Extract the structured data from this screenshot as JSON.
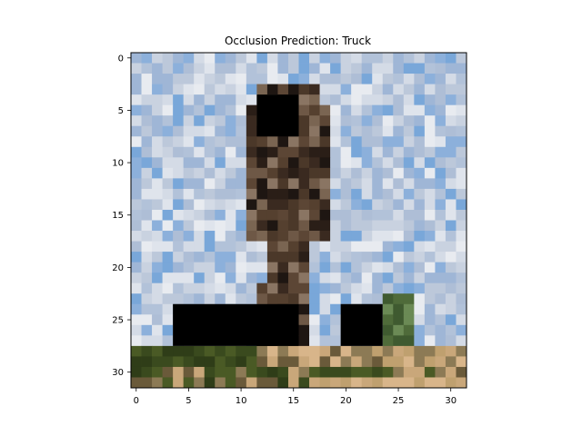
{
  "chart_data": {
    "type": "heatmap",
    "title": "Occlusion Prediction: Truck",
    "xlabel": "",
    "ylabel": "",
    "grid": false,
    "image_size": [
      32,
      32
    ],
    "xlim": [
      -0.5,
      31.5
    ],
    "ylim": [
      31.5,
      -0.5
    ],
    "xticks": [
      0,
      5,
      10,
      15,
      20,
      25,
      30
    ],
    "yticks": [
      0,
      5,
      10,
      15,
      20,
      25,
      30
    ],
    "xtick_labels": [
      "0",
      "5",
      "10",
      "15",
      "20",
      "25",
      "30"
    ],
    "ytick_labels": [
      "0",
      "5",
      "10",
      "15",
      "20",
      "25",
      "30"
    ],
    "occlusion_patches": [
      {
        "x0": 12,
        "x1": 15,
        "y0": 4,
        "y1": 7
      },
      {
        "x0": 4,
        "x1": 15,
        "y0": 24,
        "y1": 27
      },
      {
        "x0": 20,
        "x1": 23,
        "y0": 24,
        "y1": 27
      }
    ],
    "occlusion_color": "#000000",
    "sky_colors": [
      "#d4dbe6",
      "#c9d2e0",
      "#bcc8da",
      "#aebed6",
      "#9fb6d6",
      "#8cb0db",
      "#79a7d9",
      "#dfe4ec",
      "#e8ebf0",
      "#b2c2d9"
    ],
    "subject_colors": [
      "#3a2a20",
      "#4b3829",
      "#5c4635",
      "#2a1e17",
      "#6e5846",
      "#7a6552",
      "#8a7563",
      "#1e1612",
      "#55402f"
    ],
    "ground_colors": [
      "#3a4a1e",
      "#4a5a25",
      "#2f3d18",
      "#c9a77a",
      "#d8b58a",
      "#bfa06f",
      "#6a5a3a",
      "#8c7a55"
    ],
    "tree_colors": [
      "#4f6b3a",
      "#3f5a30",
      "#6b8a55"
    ]
  }
}
